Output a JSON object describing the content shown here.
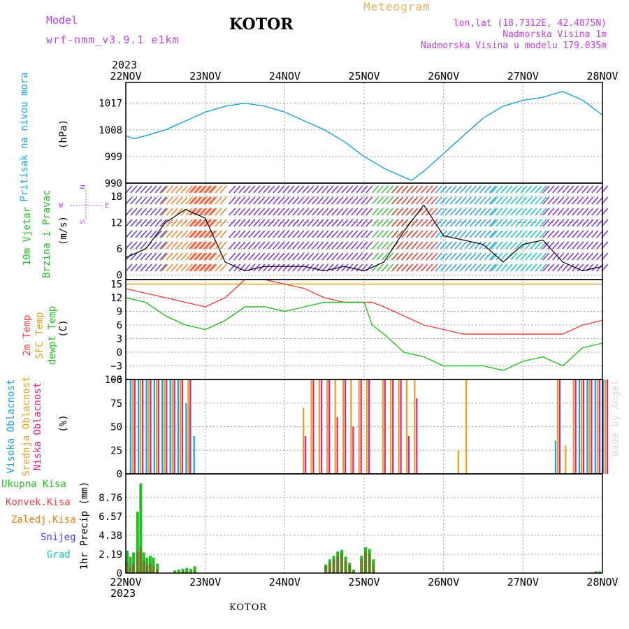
{
  "header": {
    "model_label": "Model",
    "model_name": "wrf-nmm_v3.9.1 e1km",
    "station": "KOTOR",
    "meteogram": "Meteogram",
    "lonlat": "lon,lat (18.7312E, 42.4875N)",
    "elevation": "Nadmorska Visina 1m",
    "model_elevation": "Nadmorska Visina u modelu 179.035m",
    "footer_station": "KOTOR",
    "credit": "made by Angel"
  },
  "colors": {
    "pressure": "#1aa0e6",
    "temp": "#f04040",
    "sfc": "#e6a020",
    "dewpt": "#20c020",
    "high_cloud": "#1aa0e6",
    "mid_cloud": "#e6a020",
    "low_cloud": "#e0208c",
    "total_precip": "#20c020",
    "conv_precip": "#f04040",
    "freezing": "#f08020",
    "snow": "#4040e0",
    "hail": "#20c0c0",
    "dir_label": "#c040e0"
  },
  "time_axis": {
    "year": "2023",
    "ticks": [
      "22NOV",
      "23NOV",
      "24NOV",
      "25NOV",
      "26NOV",
      "27NOV",
      "28NOV"
    ]
  },
  "panels": {
    "pressure": {
      "label1": "Pritisak na nivou mora",
      "unit": "(hPa)"
    },
    "wind": {
      "label1": "10m Vjetar",
      "label2": "Brzina i Pravac",
      "unit": "(m/s)",
      "compass_n": "N",
      "compass_s": "S",
      "compass_w": "W",
      "compass_e": "E"
    },
    "temp": {
      "label_t": "2m Temp",
      "label_sfc": "SFC Temp",
      "label_dew": "dewpt Temp",
      "unit": "(C)"
    },
    "cloud": {
      "label_high": "Visoka Oblacnost",
      "label_mid": "Srednja Oblacnost",
      "label_low": "Niska Oblacnost",
      "unit": "(%)"
    },
    "precip": {
      "label_total": "Ukupna Kisa",
      "label_conv": "Konvek.Kisa",
      "label_frz": "Zaledj.Kisa",
      "label_snow": "Snijeg",
      "label_hail": "Grad",
      "unit": "1hr Precip (mm)"
    }
  },
  "chart_data": [
    {
      "type": "line",
      "title": "",
      "ylabel": "(hPa)",
      "ylim": [
        990,
        1024
      ],
      "yticks": [
        "990",
        "999",
        "1008",
        "1017"
      ],
      "x_days": [
        0,
        0.1,
        0.25,
        0.5,
        0.75,
        1.0,
        1.25,
        1.5,
        1.75,
        2.0,
        2.25,
        2.5,
        2.75,
        3.0,
        3.25,
        3.5,
        3.6,
        3.75,
        4.0,
        4.25,
        4.5,
        4.75,
        5.0,
        5.25,
        5.5,
        5.75,
        6.0
      ],
      "series": [
        {
          "values": [
            1006,
            1005,
            1006,
            1008,
            1011,
            1014,
            1016,
            1017,
            1016,
            1014,
            1011,
            1008,
            1004,
            999,
            995,
            992,
            991,
            994,
            1000,
            1006,
            1012,
            1016,
            1018,
            1019,
            1021,
            1018,
            1013
          ]
        }
      ]
    },
    {
      "type": "line",
      "title": "",
      "ylabel": "(m/s)",
      "ylim": [
        -1,
        21
      ],
      "yticks": [
        "0",
        "6",
        "12",
        "18"
      ],
      "x_days": [
        0,
        0.25,
        0.5,
        0.75,
        1.0,
        1.25,
        1.5,
        1.75,
        2.0,
        2.25,
        2.5,
        2.75,
        3.0,
        3.25,
        3.5,
        3.75,
        4.0,
        4.25,
        4.5,
        4.75,
        5.0,
        5.25,
        5.5,
        5.75,
        6.0
      ],
      "series": [
        {
          "values": [
            4,
            6,
            12,
            15,
            13,
            3,
            1,
            2,
            2,
            2,
            1,
            2,
            1,
            3,
            10,
            16,
            9,
            8,
            7,
            3,
            7,
            8,
            3,
            1,
            2
          ]
        }
      ]
    },
    {
      "type": "line",
      "title": "",
      "ylabel": "(C)",
      "ylim": [
        -6,
        16
      ],
      "yticks": [
        "−6",
        "−3",
        "0",
        "3",
        "6",
        "9",
        "12",
        "15"
      ],
      "x_days": [
        0,
        0.25,
        0.5,
        0.75,
        1.0,
        1.25,
        1.5,
        1.75,
        2.0,
        2.25,
        2.5,
        2.75,
        3.0,
        3.1,
        3.25,
        3.5,
        3.75,
        4.0,
        4.25,
        4.5,
        4.75,
        5.0,
        5.25,
        5.5,
        5.75,
        6.0
      ],
      "series": [
        {
          "values": [
            14,
            13,
            12,
            11,
            10,
            12,
            16,
            16,
            15,
            14,
            12,
            11,
            11,
            11,
            10,
            8,
            6,
            5,
            4,
            4,
            4,
            4,
            4,
            4,
            6,
            7
          ]
        },
        {
          "values": [
            15,
            15,
            15,
            15,
            15,
            15,
            15,
            15,
            15,
            15,
            15,
            15,
            15,
            15,
            15,
            15,
            15,
            15,
            15,
            15,
            15,
            15,
            15,
            15,
            15,
            15
          ]
        },
        {
          "values": [
            12,
            11,
            8,
            6,
            5,
            7,
            10,
            10,
            9,
            10,
            11,
            11,
            11,
            6,
            4,
            0,
            -1,
            -3,
            -3,
            -3,
            -4,
            -2,
            -1,
            -3,
            1,
            2
          ]
        }
      ]
    },
    {
      "type": "bar",
      "title": "",
      "ylabel": "(%)",
      "ylim": [
        0,
        100
      ],
      "yticks": [
        "0",
        "25",
        "50",
        "75",
        "100"
      ],
      "x_days": [
        0.05,
        0.15,
        0.25,
        0.35,
        0.45,
        0.55,
        0.65,
        0.75,
        0.8,
        0.85,
        2.2,
        2.3,
        2.4,
        2.5,
        2.6,
        2.7,
        2.8,
        2.9,
        3.0,
        3.2,
        3.3,
        3.4,
        3.5,
        3.6,
        3.7,
        4.15,
        4.25,
        5.4,
        5.5,
        5.6,
        5.7,
        5.8,
        5.9,
        6.0
      ],
      "series": [
        {
          "values": [
            100,
            100,
            100,
            100,
            100,
            100,
            100,
            75,
            72,
            40,
            0,
            0,
            0,
            0,
            0,
            0,
            0,
            0,
            0,
            0,
            0,
            0,
            0,
            0,
            0,
            0,
            0,
            35,
            0,
            0,
            100,
            100,
            100,
            100
          ]
        },
        {
          "values": [
            100,
            100,
            100,
            100,
            100,
            100,
            100,
            100,
            0,
            0,
            70,
            100,
            100,
            100,
            100,
            100,
            100,
            100,
            100,
            100,
            100,
            100,
            100,
            100,
            0,
            25,
            100,
            100,
            30,
            100,
            100,
            100,
            100,
            100
          ]
        },
        {
          "values": [
            100,
            100,
            100,
            100,
            100,
            100,
            100,
            100,
            0,
            0,
            40,
            100,
            100,
            100,
            60,
            100,
            50,
            100,
            100,
            100,
            100,
            100,
            40,
            80,
            0,
            0,
            0,
            100,
            0,
            100,
            100,
            100,
            100,
            100
          ]
        }
      ]
    },
    {
      "type": "bar",
      "title": "",
      "ylabel": "1hr Precip (mm)",
      "ylim": [
        0,
        11.5
      ],
      "yticks": [
        "0",
        "2.19",
        "4.38",
        "6.57",
        "8.76"
      ],
      "x_days": [
        0.0,
        0.04,
        0.08,
        0.13,
        0.17,
        0.21,
        0.25,
        0.29,
        0.33,
        0.38,
        0.6,
        0.65,
        0.7,
        0.75,
        0.8,
        0.85,
        2.5,
        2.55,
        2.6,
        2.65,
        2.7,
        2.75,
        2.8,
        2.85,
        2.95,
        3.0,
        3.05,
        3.1,
        5.85,
        5.9,
        5.95
      ],
      "series": [
        {
          "values": [
            2.6,
            1.9,
            2.4,
            7.1,
            10.4,
            2.4,
            1.8,
            2.0,
            1.8,
            1.1,
            0.3,
            0.4,
            0.5,
            0.6,
            0.5,
            0.8,
            1.0,
            1.6,
            2.0,
            2.5,
            2.7,
            1.9,
            1.2,
            0.4,
            2.0,
            3.0,
            2.8,
            1.6,
            0.1,
            0.2,
            0.2
          ]
        },
        {
          "values": [
            1.2,
            0.7,
            1.1,
            2.4,
            3.0,
            1.4,
            0.9,
            1.1,
            0.9,
            0.4,
            0.1,
            0.1,
            0.2,
            0.2,
            0.1,
            0.3,
            0.8,
            1.2,
            1.6,
            2.0,
            2.3,
            1.4,
            0.9,
            0.2,
            1.6,
            2.5,
            2.2,
            1.1,
            0.0,
            0.1,
            0.1
          ]
        }
      ]
    }
  ]
}
